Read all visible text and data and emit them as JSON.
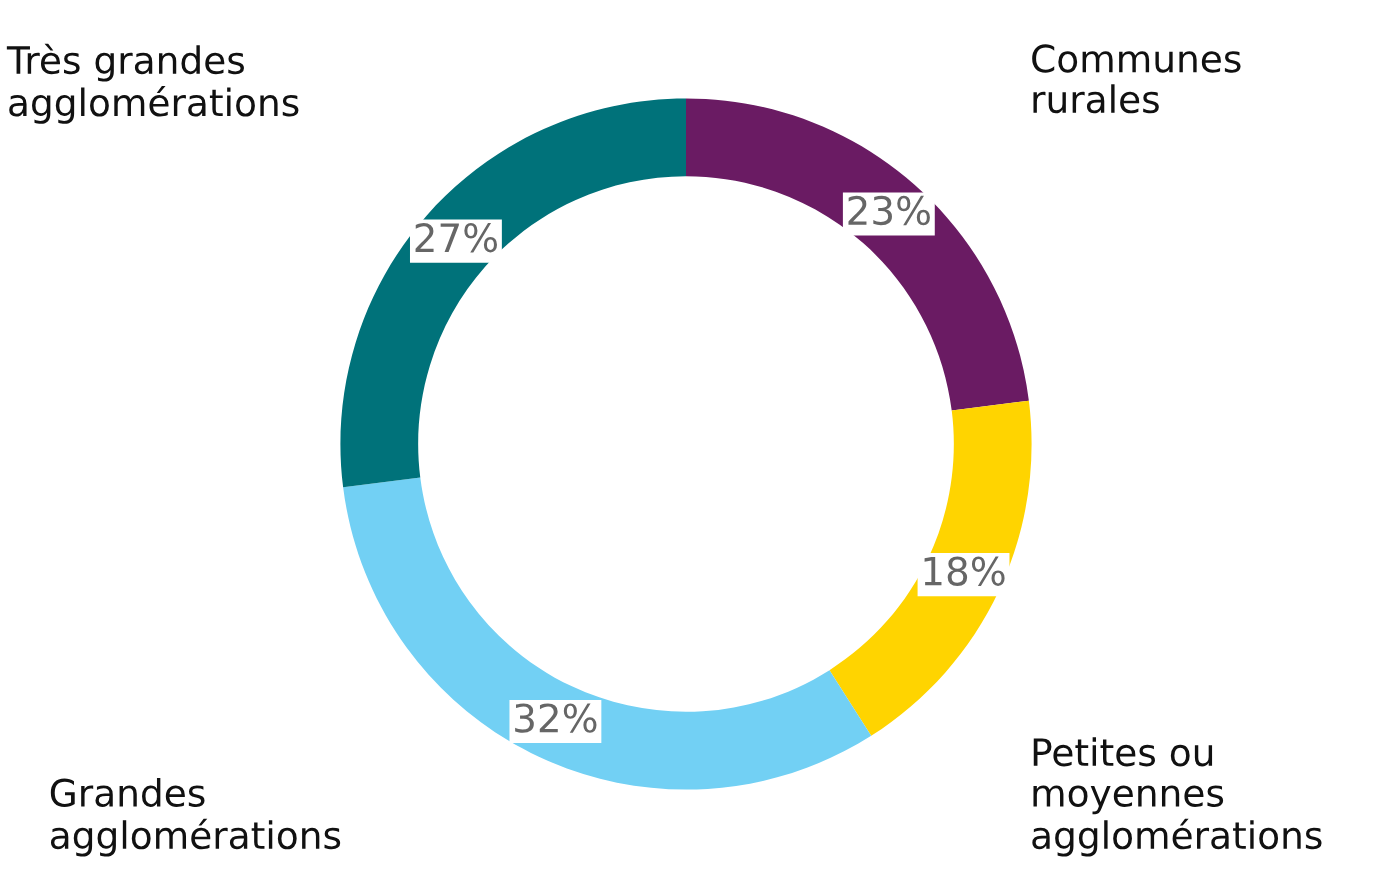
{
  "chart_data": {
    "type": "donut",
    "categories": [
      "Communes\nrurales",
      "Petites ou\nmoyennes\nagglomérations",
      "Grandes\nagglomérations",
      "Très grandes\nagglomérations"
    ],
    "values": [
      23,
      18,
      32,
      27
    ],
    "colors": [
      "#6a1b63",
      "#ffd400",
      "#72d0f4",
      "#00727a"
    ],
    "value_labels": [
      "23%",
      "18%",
      "32%",
      "27%"
    ]
  }
}
